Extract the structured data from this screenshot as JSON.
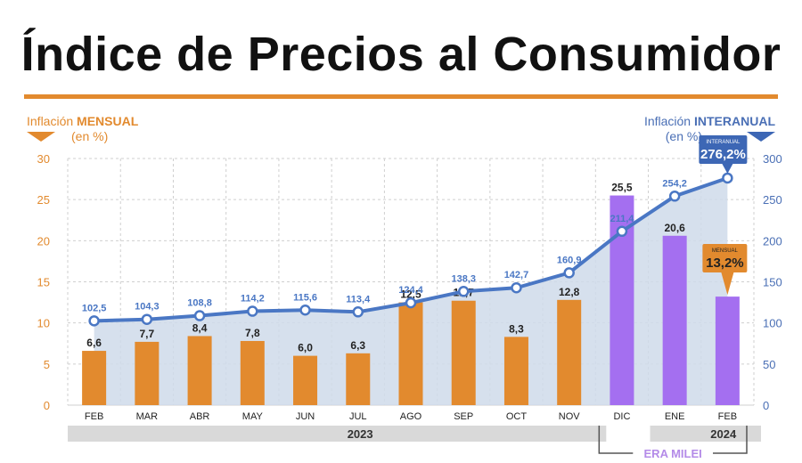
{
  "title": "Índice de Precios al Consumidor",
  "legend_left": {
    "prefix": "Inflación ",
    "emphasis": "MENSUAL",
    "unit": "(en %)"
  },
  "legend_right": {
    "prefix": "Inflación ",
    "emphasis": "INTERANUAL",
    "unit": "(en %)"
  },
  "colors": {
    "monthly_bar": "#e28a2e",
    "milei_bar": "#a46ff0",
    "annual_line": "#4a77c4",
    "annual_area": "#cfdaea",
    "grid": "#cfcfcf",
    "band": "#d9d9d9"
  },
  "year_labels": [
    "2023",
    "2024"
  ],
  "era_label": "ERA MILEI",
  "callouts": {
    "annual": {
      "small": "INTERANUAL",
      "value": "276,2%"
    },
    "monthly": {
      "small": "MENSUAL",
      "value": "13,2%"
    }
  },
  "chart_data": {
    "type": "bar",
    "categories": [
      "FEB",
      "MAR",
      "ABR",
      "MAY",
      "JUN",
      "JUL",
      "AGO",
      "SEP",
      "OCT",
      "NOV",
      "DIC",
      "ENE",
      "FEB"
    ],
    "series": [
      {
        "name": "Inflación MENSUAL",
        "type": "bar",
        "axis": "left",
        "values": [
          6.6,
          7.7,
          8.4,
          7.8,
          6.0,
          6.3,
          12.5,
          12.7,
          8.3,
          12.8,
          25.5,
          20.6,
          13.2
        ],
        "labels": [
          "6,6",
          "7,7",
          "8,4",
          "7,8",
          "6,0",
          "6,3",
          "12,5",
          "12,7",
          "8,3",
          "12,8",
          "25,5",
          "20,6",
          ""
        ]
      },
      {
        "name": "Inflación INTERANUAL",
        "type": "line",
        "axis": "right",
        "values": [
          102.5,
          104.3,
          108.8,
          114.2,
          115.6,
          113.4,
          124.4,
          138.3,
          142.7,
          160.9,
          211.4,
          254.2,
          276.2
        ],
        "labels": [
          "102,5",
          "104,3",
          "108,8",
          "114,2",
          "115,6",
          "113,4",
          "124,4",
          "138,3",
          "142,7",
          "160,9",
          "211,4",
          "254,2",
          ""
        ]
      }
    ],
    "y_left": {
      "ylim": [
        0,
        30
      ],
      "ticks": [
        "0",
        "5",
        "10",
        "15",
        "20",
        "25",
        "30"
      ]
    },
    "y_right": {
      "ylim": [
        0,
        300
      ],
      "ticks": [
        "0",
        "50",
        "100",
        "150",
        "200",
        "250",
        "300"
      ]
    },
    "grid": true
  }
}
